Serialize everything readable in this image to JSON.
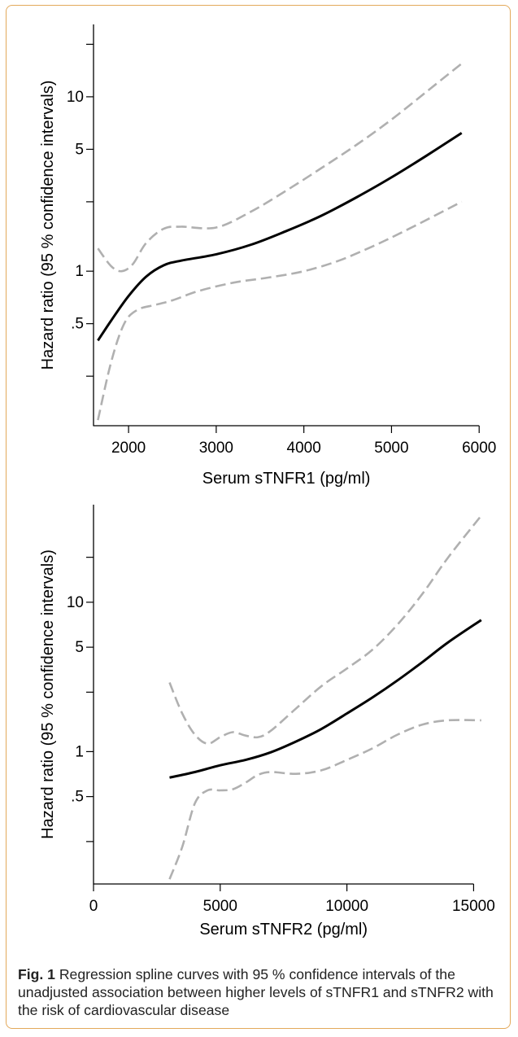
{
  "chart_data": [
    {
      "type": "line",
      "xlabel": "Serum sTNFR1 (pg/ml)",
      "ylabel": "Hazard ratio (95 % confidence intervals)",
      "y_scale": "log",
      "xlim": [
        1600,
        6100
      ],
      "ylim": [
        0.13,
        26
      ],
      "x_ticks": [
        2000,
        3000,
        4000,
        5000,
        6000
      ],
      "x_tick_labels": [
        "2000",
        "3000",
        "4000",
        "5000",
        "6000"
      ],
      "y_ticks": [
        0.5,
        1,
        5,
        10
      ],
      "y_tick_labels": [
        ".5",
        "1",
        "5",
        "10"
      ],
      "y_minor_ticks": [
        0.25,
        2.5,
        20
      ],
      "series": [
        {
          "style": "solid",
          "color": "#000000",
          "x": [
            1650,
            1800,
            2000,
            2200,
            2400,
            2600,
            3000,
            3400,
            3800,
            4200,
            4600,
            5000,
            5400,
            5800
          ],
          "y": [
            0.4,
            0.52,
            0.72,
            0.93,
            1.08,
            1.15,
            1.25,
            1.42,
            1.7,
            2.08,
            2.65,
            3.45,
            4.6,
            6.2
          ]
        },
        {
          "style": "dashed",
          "color": "#b0b0b0",
          "x": [
            1650,
            1800,
            1920,
            2050,
            2200,
            2400,
            2600,
            3000,
            3400,
            3800,
            4200,
            4600,
            5000,
            5400,
            5800
          ],
          "y": [
            1.35,
            1.07,
            1.0,
            1.1,
            1.45,
            1.75,
            1.8,
            1.78,
            2.2,
            2.9,
            3.9,
            5.3,
            7.4,
            10.7,
            15.5
          ]
        },
        {
          "style": "dashed",
          "color": "#b0b0b0",
          "x": [
            1650,
            1800,
            1950,
            2100,
            2300,
            2500,
            2800,
            3200,
            3600,
            4000,
            4400,
            4800,
            5200,
            5800
          ],
          "y": [
            0.14,
            0.3,
            0.5,
            0.6,
            0.64,
            0.68,
            0.77,
            0.86,
            0.92,
            1.0,
            1.15,
            1.4,
            1.75,
            2.5
          ]
        }
      ]
    },
    {
      "type": "line",
      "xlabel": "Serum sTNFR2 (pg/ml)",
      "ylabel": "Hazard ratio (95 % confidence intervals)",
      "y_scale": "log",
      "xlim": [
        0,
        15500
      ],
      "ylim": [
        0.13,
        45
      ],
      "x_ticks": [
        0,
        5000,
        10000,
        15000
      ],
      "x_tick_labels": [
        "0",
        "5000",
        "10000",
        "15000"
      ],
      "y_ticks": [
        0.5,
        1,
        5,
        10
      ],
      "y_tick_labels": [
        ".5",
        "1",
        "5",
        "10"
      ],
      "y_minor_ticks": [
        0.25,
        2.5,
        20
      ],
      "series": [
        {
          "style": "solid",
          "color": "#000000",
          "x": [
            3000,
            4000,
            5000,
            6000,
            7000,
            8000,
            9000,
            10000,
            11000,
            12000,
            13000,
            14000,
            15300
          ],
          "y": [
            0.67,
            0.73,
            0.81,
            0.88,
            0.99,
            1.17,
            1.42,
            1.8,
            2.3,
            3.0,
            4.0,
            5.4,
            7.6
          ]
        },
        {
          "style": "dashed",
          "color": "#b0b0b0",
          "x": [
            3000,
            3500,
            4000,
            4500,
            5000,
            5500,
            6000,
            6500,
            7000,
            8000,
            9000,
            10000,
            11000,
            12000,
            13000,
            14000,
            15300
          ],
          "y": [
            2.9,
            1.8,
            1.3,
            1.13,
            1.25,
            1.35,
            1.28,
            1.25,
            1.38,
            1.95,
            2.75,
            3.6,
            4.8,
            7.1,
            11.5,
            20,
            38
          ]
        },
        {
          "style": "dashed",
          "color": "#b0b0b0",
          "x": [
            3000,
            3500,
            4000,
            4500,
            5000,
            5500,
            6000,
            6500,
            7000,
            8000,
            9000,
            10000,
            11000,
            12000,
            13000,
            14000,
            15300
          ],
          "y": [
            0.14,
            0.23,
            0.45,
            0.55,
            0.55,
            0.56,
            0.62,
            0.7,
            0.73,
            0.71,
            0.75,
            0.88,
            1.05,
            1.3,
            1.52,
            1.62,
            1.62
          ]
        }
      ]
    }
  ],
  "caption": {
    "label": "Fig. 1",
    "text": "Regression spline curves with 95 % confidence intervals of the unadjusted association between higher levels of sTNFR1 and sTNFR2 with the risk of cardiovascular disease"
  }
}
